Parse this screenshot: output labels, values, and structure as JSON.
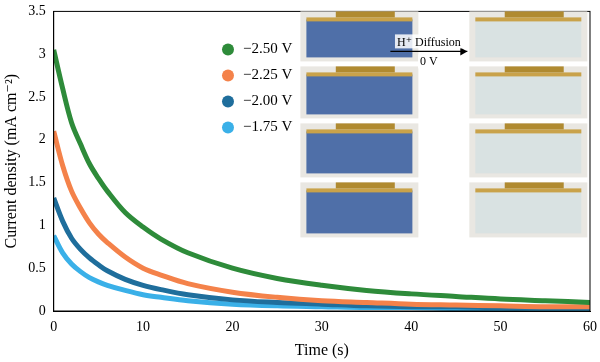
{
  "chart_data": {
    "type": "line",
    "x_label": "Time (s)",
    "y_label": "Current density (mA cm⁻²)",
    "x": [
      0,
      1,
      2,
      3,
      4,
      5,
      6,
      8,
      10,
      12,
      15,
      20,
      25,
      30,
      35,
      40,
      45,
      50,
      55,
      60
    ],
    "series": [
      {
        "name": "−2.50 V",
        "color": "#2e8b3a",
        "values": [
          3.05,
          2.6,
          2.2,
          1.95,
          1.72,
          1.55,
          1.4,
          1.15,
          0.98,
          0.84,
          0.68,
          0.5,
          0.38,
          0.3,
          0.24,
          0.2,
          0.17,
          0.14,
          0.12,
          0.1
        ]
      },
      {
        "name": "−2.25 V",
        "color": "#f4824a",
        "values": [
          2.1,
          1.7,
          1.4,
          1.2,
          1.03,
          0.9,
          0.8,
          0.63,
          0.5,
          0.42,
          0.32,
          0.22,
          0.16,
          0.12,
          0.1,
          0.08,
          0.07,
          0.06,
          0.05,
          0.05
        ]
      },
      {
        "name": "−2.00 V",
        "color": "#1f6e9c",
        "values": [
          1.32,
          1.05,
          0.85,
          0.72,
          0.62,
          0.54,
          0.47,
          0.37,
          0.3,
          0.25,
          0.19,
          0.13,
          0.1,
          0.08,
          0.06,
          0.05,
          0.05,
          0.04,
          0.04,
          0.04
        ]
      },
      {
        "name": "−1.75 V",
        "color": "#3ab0e8",
        "values": [
          0.88,
          0.68,
          0.55,
          0.46,
          0.39,
          0.34,
          0.3,
          0.24,
          0.19,
          0.16,
          0.12,
          0.08,
          0.06,
          0.05,
          0.04,
          0.04,
          0.03,
          0.03,
          0.03,
          0.03
        ]
      }
    ],
    "xlim": [
      0,
      60
    ],
    "xticks": [
      0,
      10,
      20,
      30,
      40,
      50,
      60
    ],
    "ylim": [
      0,
      3.5
    ],
    "yticks": [
      0,
      0.5,
      1,
      1.5,
      2,
      2.5,
      3,
      3.5
    ],
    "grid": false,
    "legend": "upper left",
    "annotations": [
      "H⁺ Diffusion",
      "0 V"
    ]
  }
}
